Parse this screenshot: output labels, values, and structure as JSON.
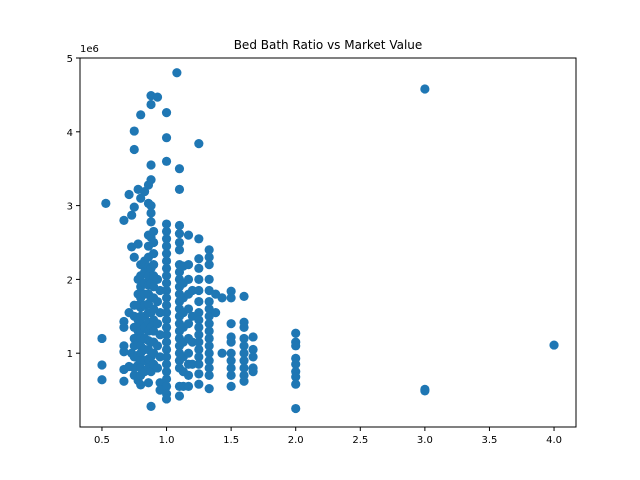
{
  "chart_data": {
    "type": "scatter",
    "title": "Bed Bath Ratio vs Market Value",
    "xlabel": "",
    "ylabel": "",
    "y_offset_label": "1e6",
    "x_ticks": [
      "0.5",
      "1.0",
      "1.5",
      "2.0",
      "2.5",
      "3.0",
      "3.5",
      "4.0"
    ],
    "y_ticks": [
      "1",
      "2",
      "3",
      "4",
      "5"
    ],
    "xlim": [
      0.33,
      4.17
    ],
    "ylim": [
      0.0,
      5.0
    ],
    "marker_color": "#1f77b4",
    "grid": false,
    "series": [
      {
        "points": [
          [
            0.5,
            1.2
          ],
          [
            0.5,
            0.84
          ],
          [
            0.5,
            0.64
          ],
          [
            0.53,
            3.03
          ],
          [
            0.67,
            1.43
          ],
          [
            0.67,
            1.35
          ],
          [
            0.67,
            1.1
          ],
          [
            0.67,
            1.02
          ],
          [
            0.67,
            0.78
          ],
          [
            0.67,
            0.62
          ],
          [
            0.67,
            2.8
          ],
          [
            0.71,
            3.15
          ],
          [
            0.71,
            1.55
          ],
          [
            0.71,
            0.82
          ],
          [
            0.73,
            2.87
          ],
          [
            0.73,
            2.44
          ],
          [
            0.73,
            1.0
          ],
          [
            0.75,
            4.01
          ],
          [
            0.75,
            3.76
          ],
          [
            0.75,
            2.98
          ],
          [
            0.75,
            2.3
          ],
          [
            0.75,
            1.65
          ],
          [
            0.75,
            1.5
          ],
          [
            0.75,
            1.35
          ],
          [
            0.75,
            1.2
          ],
          [
            0.75,
            1.1
          ],
          [
            0.75,
            0.95
          ],
          [
            0.75,
            0.8
          ],
          [
            0.75,
            0.7
          ],
          [
            0.78,
            3.22
          ],
          [
            0.78,
            2.48
          ],
          [
            0.78,
            2.0
          ],
          [
            0.78,
            1.8
          ],
          [
            0.78,
            1.65
          ],
          [
            0.78,
            1.45
          ],
          [
            0.78,
            1.3
          ],
          [
            0.78,
            1.12
          ],
          [
            0.78,
            0.97
          ],
          [
            0.78,
            0.84
          ],
          [
            0.78,
            0.63
          ],
          [
            0.8,
            4.23
          ],
          [
            0.8,
            3.1
          ],
          [
            0.8,
            2.2
          ],
          [
            0.8,
            2.05
          ],
          [
            0.8,
            1.9
          ],
          [
            0.8,
            1.75
          ],
          [
            0.8,
            1.62
          ],
          [
            0.8,
            1.5
          ],
          [
            0.8,
            1.4
          ],
          [
            0.8,
            1.3
          ],
          [
            0.8,
            1.2
          ],
          [
            0.8,
            1.1
          ],
          [
            0.8,
            1.0
          ],
          [
            0.8,
            0.9
          ],
          [
            0.8,
            0.8
          ],
          [
            0.8,
            0.7
          ],
          [
            0.8,
            0.57
          ],
          [
            0.83,
            3.19
          ],
          [
            0.83,
            2.25
          ],
          [
            0.83,
            2.1
          ],
          [
            0.83,
            1.95
          ],
          [
            0.83,
            1.8
          ],
          [
            0.83,
            1.65
          ],
          [
            0.83,
            1.5
          ],
          [
            0.83,
            1.35
          ],
          [
            0.83,
            1.2
          ],
          [
            0.83,
            1.05
          ],
          [
            0.83,
            0.9
          ],
          [
            0.83,
            0.75
          ],
          [
            0.86,
            3.28
          ],
          [
            0.86,
            3.03
          ],
          [
            0.86,
            2.6
          ],
          [
            0.86,
            2.45
          ],
          [
            0.86,
            2.3
          ],
          [
            0.86,
            2.17
          ],
          [
            0.86,
            2.05
          ],
          [
            0.86,
            1.92
          ],
          [
            0.86,
            1.8
          ],
          [
            0.86,
            1.67
          ],
          [
            0.86,
            1.55
          ],
          [
            0.86,
            1.42
          ],
          [
            0.86,
            1.3
          ],
          [
            0.86,
            1.17
          ],
          [
            0.86,
            1.05
          ],
          [
            0.86,
            0.92
          ],
          [
            0.86,
            0.8
          ],
          [
            0.86,
            0.6
          ],
          [
            0.88,
            4.49
          ],
          [
            0.88,
            4.37
          ],
          [
            0.88,
            3.55
          ],
          [
            0.88,
            3.35
          ],
          [
            0.88,
            3.0
          ],
          [
            0.88,
            2.9
          ],
          [
            0.88,
            2.78
          ],
          [
            0.88,
            2.57
          ],
          [
            0.88,
            2.15
          ],
          [
            0.88,
            1.95
          ],
          [
            0.88,
            1.75
          ],
          [
            0.88,
            1.55
          ],
          [
            0.88,
            1.35
          ],
          [
            0.88,
            1.15
          ],
          [
            0.88,
            0.95
          ],
          [
            0.88,
            0.75
          ],
          [
            0.88,
            0.28
          ],
          [
            0.9,
            2.65
          ],
          [
            0.9,
            2.5
          ],
          [
            0.9,
            2.35
          ],
          [
            0.9,
            2.2
          ],
          [
            0.9,
            2.05
          ],
          [
            0.9,
            1.9
          ],
          [
            0.9,
            1.75
          ],
          [
            0.9,
            1.6
          ],
          [
            0.9,
            1.45
          ],
          [
            0.9,
            1.3
          ],
          [
            0.9,
            1.15
          ],
          [
            0.9,
            1.0
          ],
          [
            0.9,
            0.85
          ],
          [
            0.93,
            4.47
          ],
          [
            0.93,
            2.0
          ],
          [
            0.93,
            1.7
          ],
          [
            0.93,
            1.4
          ],
          [
            0.93,
            1.1
          ],
          [
            0.93,
            0.8
          ],
          [
            0.95,
            1.85
          ],
          [
            0.95,
            1.55
          ],
          [
            0.95,
            1.25
          ],
          [
            0.95,
            0.95
          ],
          [
            0.95,
            0.6
          ],
          [
            0.95,
            0.5
          ],
          [
            1.0,
            4.26
          ],
          [
            1.0,
            3.92
          ],
          [
            1.0,
            3.6
          ],
          [
            1.0,
            2.75
          ],
          [
            1.0,
            2.65
          ],
          [
            1.0,
            2.55
          ],
          [
            1.0,
            2.45
          ],
          [
            1.0,
            2.35
          ],
          [
            1.0,
            2.25
          ],
          [
            1.0,
            2.15
          ],
          [
            1.0,
            2.05
          ],
          [
            1.0,
            1.95
          ],
          [
            1.0,
            1.85
          ],
          [
            1.0,
            1.75
          ],
          [
            1.0,
            1.65
          ],
          [
            1.0,
            1.55
          ],
          [
            1.0,
            1.45
          ],
          [
            1.0,
            1.35
          ],
          [
            1.0,
            1.25
          ],
          [
            1.0,
            1.15
          ],
          [
            1.0,
            1.05
          ],
          [
            1.0,
            0.95
          ],
          [
            1.0,
            0.85
          ],
          [
            1.0,
            0.75
          ],
          [
            1.0,
            0.65
          ],
          [
            1.0,
            0.55
          ],
          [
            1.0,
            0.45
          ],
          [
            1.0,
            0.38
          ],
          [
            1.08,
            4.8
          ],
          [
            1.1,
            3.5
          ],
          [
            1.1,
            3.22
          ],
          [
            1.1,
            2.73
          ],
          [
            1.1,
            2.62
          ],
          [
            1.1,
            2.5
          ],
          [
            1.1,
            2.4
          ],
          [
            1.1,
            2.2
          ],
          [
            1.1,
            2.1
          ],
          [
            1.1,
            2.0
          ],
          [
            1.1,
            1.9
          ],
          [
            1.1,
            1.8
          ],
          [
            1.1,
            1.7
          ],
          [
            1.1,
            1.6
          ],
          [
            1.1,
            1.5
          ],
          [
            1.1,
            1.4
          ],
          [
            1.1,
            1.3
          ],
          [
            1.1,
            1.2
          ],
          [
            1.1,
            1.1
          ],
          [
            1.1,
            1.0
          ],
          [
            1.1,
            0.9
          ],
          [
            1.1,
            0.8
          ],
          [
            1.1,
            0.55
          ],
          [
            1.1,
            0.42
          ],
          [
            1.13,
            2.18
          ],
          [
            1.13,
            1.95
          ],
          [
            1.13,
            1.75
          ],
          [
            1.13,
            1.55
          ],
          [
            1.13,
            1.35
          ],
          [
            1.13,
            1.15
          ],
          [
            1.13,
            0.95
          ],
          [
            1.13,
            0.75
          ],
          [
            1.13,
            0.55
          ],
          [
            1.17,
            2.6
          ],
          [
            1.17,
            2.2
          ],
          [
            1.17,
            2.0
          ],
          [
            1.17,
            1.8
          ],
          [
            1.17,
            1.6
          ],
          [
            1.17,
            1.4
          ],
          [
            1.17,
            1.2
          ],
          [
            1.17,
            1.0
          ],
          [
            1.17,
            0.85
          ],
          [
            1.17,
            0.7
          ],
          [
            1.17,
            0.55
          ],
          [
            1.2,
            1.85
          ],
          [
            1.2,
            1.5
          ],
          [
            1.2,
            1.15
          ],
          [
            1.2,
            0.85
          ],
          [
            1.25,
            3.84
          ],
          [
            1.25,
            2.55
          ],
          [
            1.25,
            2.28
          ],
          [
            1.25,
            2.15
          ],
          [
            1.25,
            2.0
          ],
          [
            1.25,
            1.85
          ],
          [
            1.25,
            1.7
          ],
          [
            1.25,
            1.55
          ],
          [
            1.25,
            1.45
          ],
          [
            1.25,
            1.35
          ],
          [
            1.25,
            1.25
          ],
          [
            1.25,
            1.15
          ],
          [
            1.25,
            1.05
          ],
          [
            1.25,
            0.95
          ],
          [
            1.25,
            0.85
          ],
          [
            1.25,
            0.72
          ],
          [
            1.25,
            0.58
          ],
          [
            1.33,
            2.4
          ],
          [
            1.33,
            2.3
          ],
          [
            1.33,
            2.2
          ],
          [
            1.33,
            2.0
          ],
          [
            1.33,
            1.85
          ],
          [
            1.33,
            1.7
          ],
          [
            1.33,
            1.6
          ],
          [
            1.33,
            1.5
          ],
          [
            1.33,
            1.4
          ],
          [
            1.33,
            1.3
          ],
          [
            1.33,
            1.2
          ],
          [
            1.33,
            1.1
          ],
          [
            1.33,
            1.0
          ],
          [
            1.33,
            0.9
          ],
          [
            1.33,
            0.8
          ],
          [
            1.33,
            0.7
          ],
          [
            1.33,
            0.52
          ],
          [
            1.38,
            1.8
          ],
          [
            1.38,
            1.55
          ],
          [
            1.43,
            1.75
          ],
          [
            1.43,
            1.0
          ],
          [
            1.5,
            1.84
          ],
          [
            1.5,
            1.75
          ],
          [
            1.5,
            1.4
          ],
          [
            1.5,
            1.22
          ],
          [
            1.5,
            1.15
          ],
          [
            1.5,
            1.0
          ],
          [
            1.5,
            0.9
          ],
          [
            1.5,
            0.8
          ],
          [
            1.5,
            0.7
          ],
          [
            1.5,
            0.55
          ],
          [
            1.6,
            1.77
          ],
          [
            1.6,
            1.42
          ],
          [
            1.6,
            1.35
          ],
          [
            1.6,
            1.2
          ],
          [
            1.6,
            1.1
          ],
          [
            1.6,
            1.0
          ],
          [
            1.6,
            0.9
          ],
          [
            1.6,
            0.8
          ],
          [
            1.6,
            0.7
          ],
          [
            1.6,
            0.62
          ],
          [
            1.67,
            1.22
          ],
          [
            1.67,
            1.05
          ],
          [
            1.67,
            0.95
          ],
          [
            1.67,
            0.8
          ],
          [
            1.67,
            0.75
          ],
          [
            2.0,
            1.27
          ],
          [
            2.0,
            1.15
          ],
          [
            2.0,
            1.1
          ],
          [
            2.0,
            0.93
          ],
          [
            2.0,
            0.85
          ],
          [
            2.0,
            0.75
          ],
          [
            2.0,
            0.68
          ],
          [
            2.0,
            0.58
          ],
          [
            2.0,
            0.25
          ],
          [
            3.0,
            4.58
          ],
          [
            3.0,
            0.51
          ],
          [
            3.0,
            0.49
          ],
          [
            4.0,
            1.11
          ]
        ]
      }
    ]
  }
}
